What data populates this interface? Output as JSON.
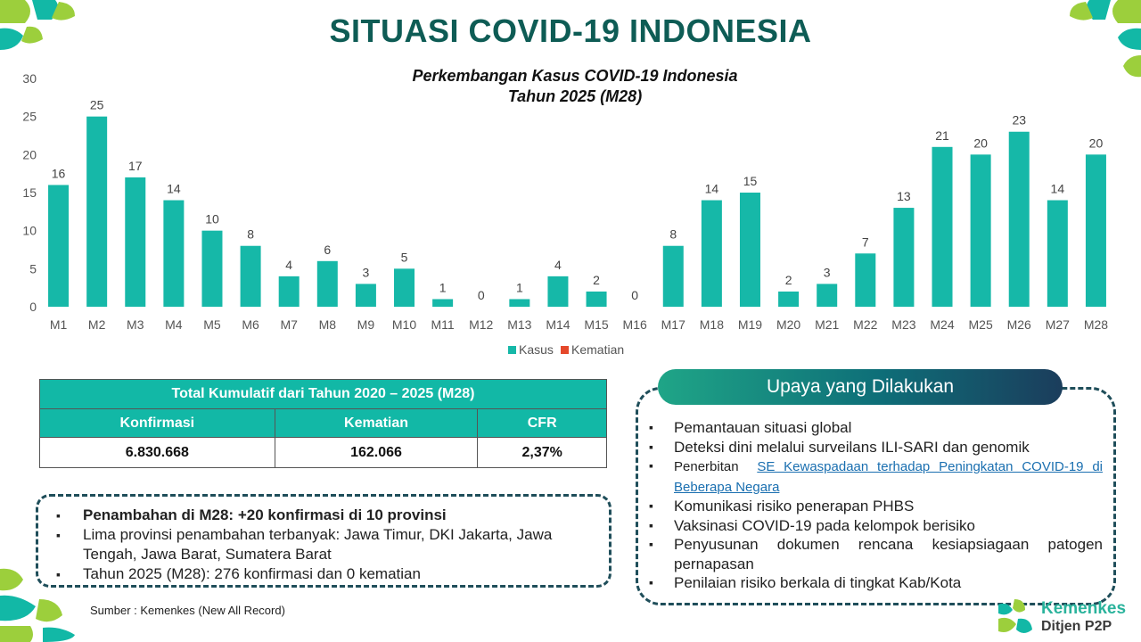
{
  "header": {
    "title": "SITUASI COVID-19 INDONESIA"
  },
  "chart_data": {
    "type": "bar",
    "title_line1": "Perkembangan Kasus COVID-19 Indonesia",
    "title_line2": "Tahun 2025 (M28)",
    "categories": [
      "M1",
      "M2",
      "M3",
      "M4",
      "M5",
      "M6",
      "M7",
      "M8",
      "M9",
      "M10",
      "M11",
      "M12",
      "M13",
      "M14",
      "M15",
      "M16",
      "M17",
      "M18",
      "M19",
      "M20",
      "M21",
      "M22",
      "M23",
      "M24",
      "M25",
      "M26",
      "M27",
      "M28"
    ],
    "series": [
      {
        "name": "Kasus",
        "color": "#16b8a8",
        "values": [
          16,
          25,
          17,
          14,
          10,
          8,
          4,
          6,
          3,
          5,
          1,
          0,
          1,
          4,
          2,
          0,
          8,
          14,
          15,
          2,
          3,
          7,
          13,
          21,
          20,
          23,
          14,
          20
        ]
      },
      {
        "name": "Kematian",
        "color": "#e5482b",
        "values": [
          0,
          0,
          0,
          0,
          0,
          0,
          0,
          0,
          0,
          0,
          0,
          0,
          0,
          0,
          0,
          0,
          0,
          0,
          0,
          0,
          0,
          0,
          0,
          0,
          0,
          0,
          0,
          0
        ]
      }
    ],
    "ylim": [
      0,
      30
    ],
    "yticks": [
      0,
      5,
      10,
      15,
      20,
      25,
      30
    ],
    "grid": false,
    "legend_position": "bottom",
    "data_labels": true
  },
  "summary": {
    "title": "Total Kumulatif dari Tahun 2020 – 2025 (M28)",
    "columns": [
      "Konfirmasi",
      "Kematian",
      "CFR"
    ],
    "values": [
      "6.830.668",
      "162.066",
      "2,37%"
    ]
  },
  "notes": {
    "items": [
      "Penambahan di M28: +20 konfirmasi di 10 provinsi",
      "Lima provinsi penambahan terbanyak: Jawa Timur, DKI Jakarta, Jawa Tengah, Jawa Barat, Sumatera Barat",
      "Tahun 2025 (M28): 276 konfirmasi dan 0 kematian"
    ]
  },
  "source": "Sumber : Kemenkes (New All Record)",
  "actions": {
    "title": "Upaya yang Dilakukan",
    "items": [
      "Pemantauan situasi global",
      "Deteksi dini melalui surveilans ILI-SARI dan genomik",
      "Penerbitan",
      "Komunikasi risiko penerapan PHBS",
      "Vaksinasi COVID-19 pada kelompok berisiko",
      "Penyusunan dokumen rencana kesiapsiagaan patogen pernapasan",
      "Penilaian risiko berkala di tingkat Kab/Kota"
    ],
    "link_text": "SE Kewaspadaan terhadap Peningkatan COVID-19 di Beberapa Negara"
  },
  "logo": {
    "name": "Kemenkes",
    "subtitle": "Ditjen P2P"
  },
  "colors": {
    "title": "#0e5c55",
    "accent": "#12b8a6",
    "corner_green": "#9ccf3c",
    "corner_teal": "#12b8a6"
  }
}
